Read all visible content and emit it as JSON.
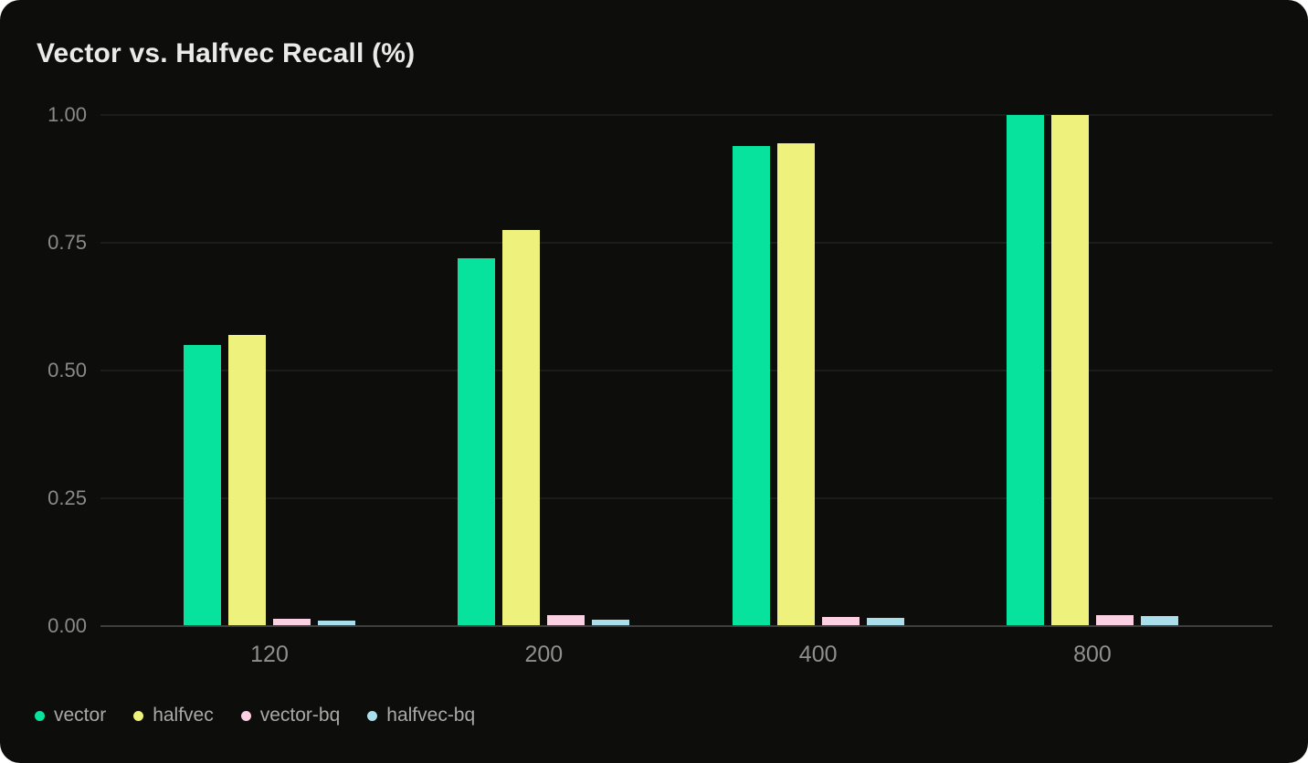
{
  "chart_data": {
    "type": "bar",
    "title": "Vector vs. Halfvec Recall (%)",
    "categories": [
      "120",
      "200",
      "400",
      "800"
    ],
    "series": [
      {
        "name": "vector",
        "color": "#07e29c",
        "values": [
          0.55,
          0.72,
          0.94,
          1.0
        ]
      },
      {
        "name": "halfvec",
        "color": "#eef17b",
        "values": [
          0.57,
          0.775,
          0.945,
          1.0
        ]
      },
      {
        "name": "vector-bq",
        "color": "#fbd0e2",
        "values": [
          0.014,
          0.021,
          0.018,
          0.021
        ]
      },
      {
        "name": "halfvec-bq",
        "color": "#aadeea",
        "values": [
          0.011,
          0.013,
          0.016,
          0.02
        ]
      }
    ],
    "y_ticks": [
      "1.00",
      "0.75",
      "0.50",
      "0.25",
      "0.00"
    ],
    "ylim": [
      0,
      1
    ],
    "grid": true,
    "legend_position": "bottom-left"
  },
  "colors": {
    "page_background": "#ffffff",
    "card_background": "#0d0d0c",
    "gridline": "#2c2c2c",
    "axis_line": "#3e3e3e",
    "title_text": "#eaeaea",
    "y_tick_text": "#8a8a8a",
    "x_tick_text": "#8f8f8f",
    "legend_text": "#a9a9a9"
  }
}
